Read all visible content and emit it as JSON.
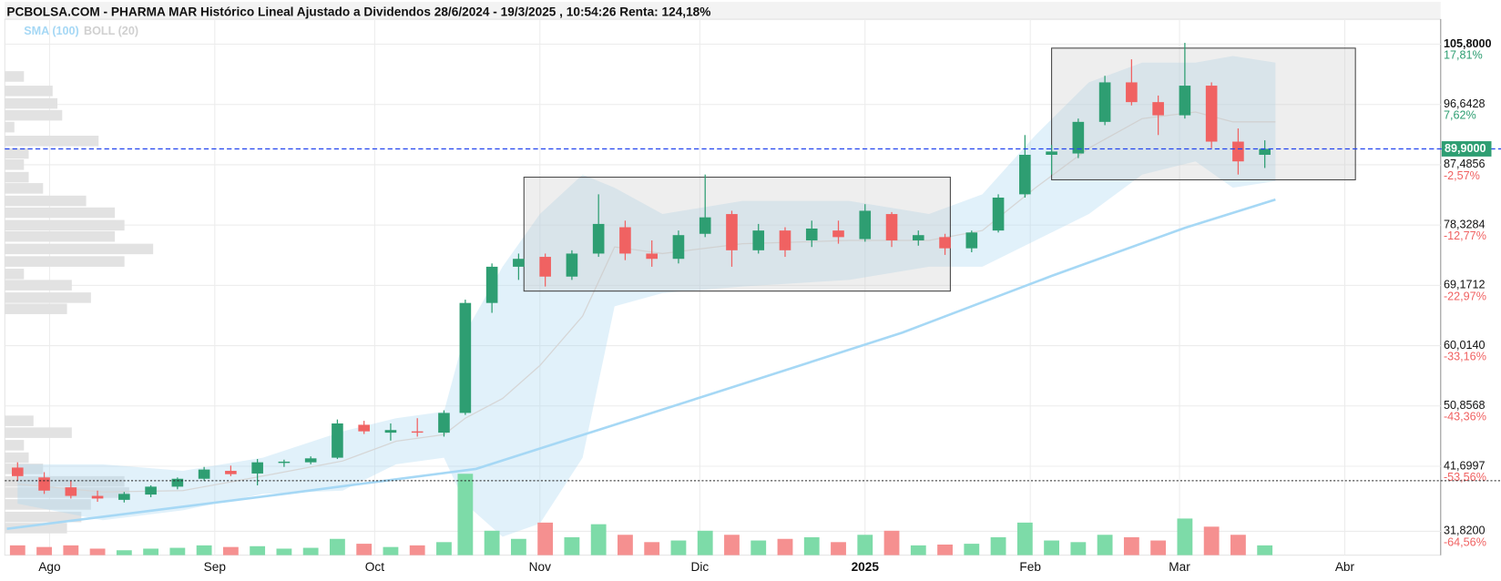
{
  "chart_data": {
    "type": "candlestick",
    "title": "PCBOLSA.COM - PHARMA MAR Histórico Lineal Ajustado a Dividendos 28/6/2024 - 19/3/2025 , 10:54:26 Renta: 124,18%",
    "legend": [
      {
        "name": "SMA (100)",
        "color": "#a6d8f5"
      },
      {
        "name": "BOLL (20)",
        "color": "#d0d0d0"
      }
    ],
    "xlim": [
      -8.4,
      261
    ],
    "xticks": [
      {
        "value": 0,
        "label": "Ago"
      },
      {
        "value": 31,
        "label": "Sep"
      },
      {
        "value": 61,
        "label": "Oct"
      },
      {
        "value": 92,
        "label": "Nov"
      },
      {
        "value": 122,
        "label": "Dic"
      },
      {
        "value": 153,
        "label": "2025"
      },
      {
        "value": 184,
        "label": "Feb"
      },
      {
        "value": 212,
        "label": "Mar"
      },
      {
        "value": 243,
        "label": "Abr"
      }
    ],
    "ylim": [
      28.2,
      109.6
    ],
    "yticks": [
      {
        "value": 105.8,
        "label": "105,8000"
      },
      {
        "value": 96.6428,
        "label": "96,6428"
      },
      {
        "value": 87.4856,
        "label": "87,4856"
      },
      {
        "value": 78.3284,
        "label": "78,3284"
      },
      {
        "value": 69.1712,
        "label": "69,1712"
      },
      {
        "value": 60.014,
        "label": "60,0140"
      },
      {
        "value": 50.8568,
        "label": "50,8568"
      },
      {
        "value": 41.6997,
        "label": "41,6997"
      },
      {
        "value": 31.82,
        "label": "31,8200"
      }
    ],
    "percent_labels": [
      "17,81%",
      "7,62%",
      "-2,57%",
      "-12,77%",
      "-22,97%",
      "-33,16%",
      "-43,36%",
      "-53,56%",
      "-64,56%"
    ],
    "grid": true,
    "up_color": "#2e9e72",
    "down_color": "#f06262",
    "volume_up_color": "#7ddba8",
    "volume_down_color": "#f59090",
    "candles": {
      "x": [
        -6,
        -1,
        4,
        9,
        14,
        19,
        24,
        29,
        34,
        39,
        44,
        49,
        54,
        59,
        64,
        69,
        74,
        78,
        83,
        88,
        93,
        98,
        103,
        108,
        113,
        118,
        123,
        128,
        133,
        138,
        143,
        148,
        153,
        158,
        163,
        168,
        173,
        178,
        183,
        188,
        193,
        198,
        203,
        208,
        213,
        218,
        223,
        228
      ],
      "open": [
        41.5,
        40.0,
        38.5,
        37.2,
        36.6,
        37.4,
        38.6,
        39.8,
        41.0,
        40.6,
        42.2,
        42.3,
        43.0,
        48.0,
        46.8,
        47.0,
        46.8,
        49.8,
        66.5,
        72.0,
        73.5,
        70.5,
        74.0,
        78.0,
        74.0,
        73.2,
        77.0,
        80.0,
        74.5,
        77.5,
        76.0,
        77.5,
        76.2,
        80.0,
        76.0,
        76.5,
        74.8,
        77.5,
        83.0,
        89.0,
        89.2,
        94.0,
        100.0,
        97.0,
        95.0,
        99.5,
        91.0,
        89.0
      ],
      "high": [
        42.3,
        40.8,
        39.5,
        38.0,
        37.8,
        38.8,
        40.0,
        41.6,
        41.8,
        42.8,
        42.7,
        43.2,
        48.8,
        48.6,
        48.2,
        49.0,
        50.2,
        67.0,
        72.5,
        74.0,
        74.0,
        74.5,
        83.0,
        79.0,
        76.0,
        77.5,
        86.0,
        80.5,
        78.5,
        78.0,
        79.0,
        79.0,
        81.5,
        80.3,
        77.5,
        77.0,
        77.5,
        83.0,
        92.0,
        90.5,
        94.5,
        101.0,
        103.5,
        98.0,
        106.0,
        100.0,
        93.0,
        91.2
      ],
      "low": [
        39.5,
        37.5,
        36.8,
        36.3,
        36.2,
        37.0,
        38.2,
        39.5,
        40.2,
        38.8,
        41.6,
        42.0,
        42.8,
        46.6,
        45.6,
        46.2,
        46.2,
        49.5,
        65.0,
        70.0,
        69.0,
        70.0,
        73.5,
        73.0,
        72.0,
        72.5,
        76.5,
        72.0,
        74.0,
        73.5,
        75.0,
        75.5,
        75.8,
        75.0,
        75.2,
        73.8,
        74.2,
        77.2,
        82.5,
        86.0,
        88.5,
        93.5,
        96.5,
        92.0,
        94.5,
        90.0,
        86.0,
        87.0
      ],
      "close": [
        40.2,
        38.0,
        37.2,
        36.8,
        37.5,
        38.6,
        39.8,
        41.2,
        40.5,
        42.3,
        42.4,
        42.9,
        48.2,
        47.0,
        47.2,
        46.8,
        49.8,
        66.5,
        72.0,
        73.2,
        70.5,
        74.0,
        78.5,
        74.0,
        73.2,
        76.8,
        79.5,
        74.5,
        77.5,
        74.5,
        77.8,
        76.5,
        80.5,
        76.0,
        76.8,
        74.8,
        77.2,
        82.5,
        89.0,
        89.5,
        94.0,
        100.0,
        97.0,
        95.0,
        99.5,
        91.0,
        88.0,
        89.9
      ],
      "volume": [
        12,
        10,
        12,
        8,
        6,
        8,
        9,
        12,
        10,
        11,
        8,
        9,
        20,
        14,
        10,
        12,
        16,
        100,
        30,
        20,
        40,
        22,
        38,
        25,
        16,
        18,
        30,
        25,
        18,
        20,
        22,
        16,
        25,
        30,
        12,
        13,
        14,
        22,
        40,
        18,
        16,
        25,
        22,
        18,
        45,
        35,
        25,
        12
      ]
    },
    "sma": {
      "x": [
        -8,
        45,
        80,
        125,
        160,
        188,
        213,
        230
      ],
      "values": [
        32.2,
        37.6,
        41.3,
        52.9,
        62.0,
        70.6,
        77.9,
        82.2
      ]
    },
    "bollinger": {
      "x": [
        -6,
        10,
        25,
        40,
        55,
        65,
        74,
        78,
        85,
        92,
        100,
        106,
        115,
        130,
        150,
        165,
        175,
        185,
        195,
        205,
        215,
        222,
        230
      ],
      "upper": [
        42,
        42,
        41,
        43,
        47,
        49,
        50,
        62,
        72,
        80,
        86,
        84,
        80,
        82,
        82,
        80,
        83,
        92,
        100,
        103,
        103,
        104,
        103
      ],
      "middle": [
        39,
        37.8,
        38,
        40.2,
        42.5,
        45.5,
        46.5,
        49,
        52,
        57,
        64.5,
        75,
        74,
        75.5,
        76,
        76,
        77.5,
        84,
        90,
        94.5,
        95.5,
        94,
        94
      ],
      "lower": [
        36,
        33.5,
        35,
        37.5,
        38,
        42,
        43,
        36,
        31,
        33,
        43,
        66,
        68,
        69,
        70,
        72,
        72,
        76,
        80,
        86,
        88,
        84,
        85
      ]
    },
    "boxes": [
      {
        "x": [
          89,
          169
        ],
        "y": [
          68.3,
          85.6
        ]
      },
      {
        "x": [
          188,
          245
        ],
        "y": [
          85.2,
          105.2
        ]
      }
    ],
    "last_price": {
      "value": 89.9,
      "label": "89,9000"
    },
    "reference_line": 39.5,
    "volume_profile": {
      "levels": [
        100.9,
        98.7,
        96.8,
        95.0,
        93.2,
        91.1,
        89.2,
        87.5,
        85.6,
        83.9,
        82.0,
        80.2,
        78.3,
        76.6,
        74.7,
        72.8,
        70.9,
        69.2,
        67.3,
        65.6,
        48.6,
        46.8,
        44.9,
        43.0,
        41.3,
        39.4,
        37.7,
        35.9,
        34.0,
        32.3
      ],
      "values": [
        20,
        50,
        55,
        60,
        10,
        98,
        25,
        20,
        25,
        40,
        85,
        115,
        125,
        115,
        155,
        125,
        20,
        70,
        90,
        65,
        30,
        70,
        20,
        25,
        40,
        125,
        130,
        90,
        80,
        65
      ]
    }
  }
}
